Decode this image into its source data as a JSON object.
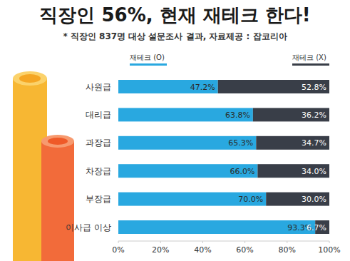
{
  "chart_data": {
    "type": "bar",
    "title": "직장인 56%, 현재 재테크 한다!",
    "subtitle": "* 직장인 837명 대상 설문조사 결과, 자료제공 : 잡코리아",
    "orientation": "horizontal",
    "stacked": true,
    "data_labels": true,
    "grid": false,
    "legend": "top",
    "categories": [
      "사원급",
      "대리급",
      "과장급",
      "차장급",
      "부장급",
      "이사급 이상"
    ],
    "series": [
      {
        "name": "재테크 (O)",
        "color": "#29a8e0",
        "values": [
          47.2,
          63.8,
          65.3,
          66.0,
          70.0,
          93.3
        ],
        "value_labels": [
          "47.2%",
          "63.8%",
          "65.3%",
          "66.0%",
          "70.0%",
          "93.3%"
        ]
      },
      {
        "name": "재테크 (X)",
        "color": "#393e48",
        "values": [
          52.8,
          36.2,
          34.7,
          34.0,
          30.0,
          6.7
        ],
        "value_labels": [
          "52.8%",
          "36.2%",
          "34.7%",
          "34.0%",
          "30.0%",
          "6.7%"
        ]
      }
    ],
    "xlim": [
      0,
      100
    ],
    "xticks": [
      {
        "value": 0,
        "label": "0%"
      },
      {
        "value": 20,
        "label": "20%"
      },
      {
        "value": 40,
        "label": "40%"
      },
      {
        "value": 60,
        "label": "60%"
      },
      {
        "value": 80,
        "label": "80%"
      },
      {
        "value": 100,
        "label": "100%"
      }
    ]
  }
}
